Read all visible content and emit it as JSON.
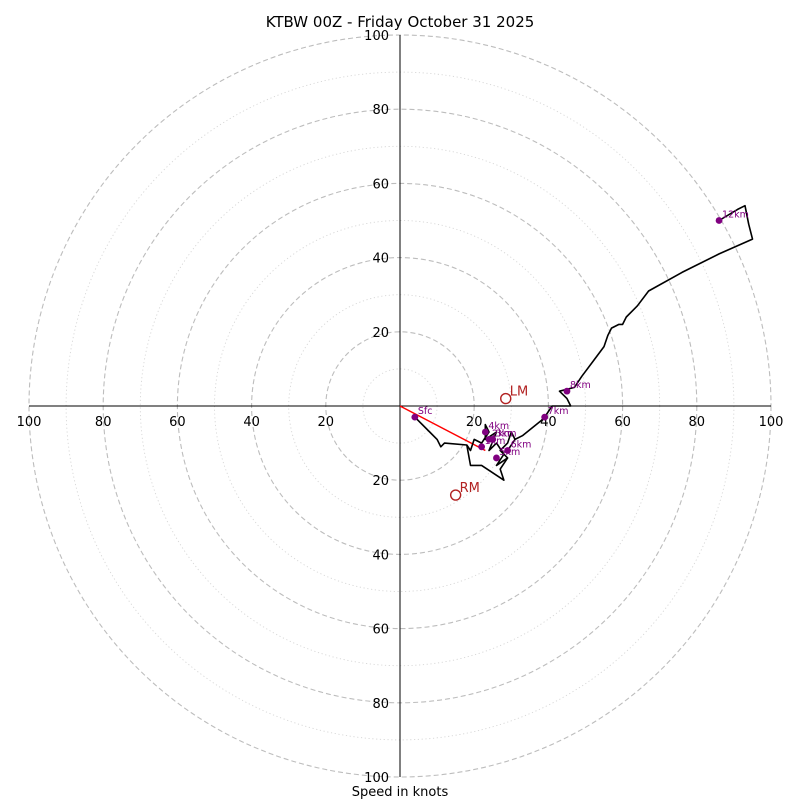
{
  "chart_data": {
    "type": "hodograph",
    "title": "KTBW 00Z - Friday October 31 2025",
    "xlabel": "Speed in knots",
    "range_knots": 100,
    "ring_step_major": 20,
    "ring_step_minor": 10,
    "axis_ticks": {
      "right": [
        "20",
        "40",
        "60",
        "80",
        "100"
      ],
      "left": [
        "100",
        "80",
        "60",
        "40",
        "20"
      ],
      "up": [
        "20",
        "40",
        "60",
        "80",
        "100"
      ],
      "down": [
        "20",
        "40",
        "60",
        "80",
        "100"
      ]
    },
    "trace": [
      [
        4,
        -3
      ],
      [
        8,
        -7
      ],
      [
        10,
        -9
      ],
      [
        11,
        -11
      ],
      [
        12,
        -10
      ],
      [
        18,
        -10.5
      ],
      [
        19,
        -12
      ],
      [
        20,
        -9
      ],
      [
        22,
        -10
      ],
      [
        24,
        -7
      ],
      [
        23,
        -5
      ],
      [
        23,
        -9
      ],
      [
        26,
        -7
      ],
      [
        24,
        -12
      ],
      [
        26,
        -10
      ],
      [
        28,
        -13
      ],
      [
        26,
        -16
      ],
      [
        29,
        -14
      ],
      [
        27,
        -12
      ],
      [
        29,
        -10
      ],
      [
        30,
        -7
      ],
      [
        31,
        -9
      ],
      [
        29,
        -12
      ],
      [
        31,
        -9
      ],
      [
        33,
        -8
      ],
      [
        38,
        -4
      ],
      [
        39,
        -3
      ],
      [
        41,
        0
      ],
      [
        46,
        0
      ],
      [
        45,
        2
      ],
      [
        43,
        4
      ],
      [
        47,
        5
      ],
      [
        49,
        8
      ],
      [
        52,
        12
      ],
      [
        55,
        16
      ],
      [
        56,
        19
      ],
      [
        57,
        21
      ],
      [
        59,
        22
      ],
      [
        60,
        22
      ],
      [
        61,
        24
      ],
      [
        64,
        27
      ],
      [
        67,
        31
      ],
      [
        76,
        36
      ],
      [
        86,
        41
      ],
      [
        95,
        45
      ],
      [
        94,
        49
      ],
      [
        93,
        54
      ],
      [
        91,
        53
      ],
      [
        86,
        50
      ]
    ],
    "trace_lower_loop": [
      [
        18,
        -10.5
      ],
      [
        19,
        -16
      ],
      [
        22,
        -16
      ],
      [
        28,
        -20
      ],
      [
        27,
        -17
      ],
      [
        29,
        -14
      ]
    ],
    "height_markers": [
      {
        "label": "Sfc",
        "u": 4,
        "v": -3
      },
      {
        "label": "1km",
        "u": 22,
        "v": -11
      },
      {
        "label": "2km",
        "u": 24,
        "v": -9
      },
      {
        "label": "3km",
        "u": 25,
        "v": -9
      },
      {
        "label": "4km",
        "u": 23,
        "v": -7
      },
      {
        "label": "5km",
        "u": 26,
        "v": -14
      },
      {
        "label": "6km",
        "u": 29,
        "v": -12
      },
      {
        "label": "7km",
        "u": 39,
        "v": -3
      },
      {
        "label": "8km",
        "u": 45,
        "v": 4
      },
      {
        "label": "12km",
        "u": 86,
        "v": 50
      }
    ],
    "storm_motion": [
      {
        "label": "LM",
        "u": 28.5,
        "v": 2
      },
      {
        "label": "RM",
        "u": 15,
        "v": -24
      }
    ],
    "shear_vector": {
      "from": [
        0,
        0
      ],
      "to": [
        23,
        -12
      ]
    },
    "colors": {
      "trace": "#000000",
      "markers": "#800080",
      "storm_motion": "#b22222",
      "shear_vector": "#ff0000",
      "grid": "#bdbdbd"
    }
  }
}
